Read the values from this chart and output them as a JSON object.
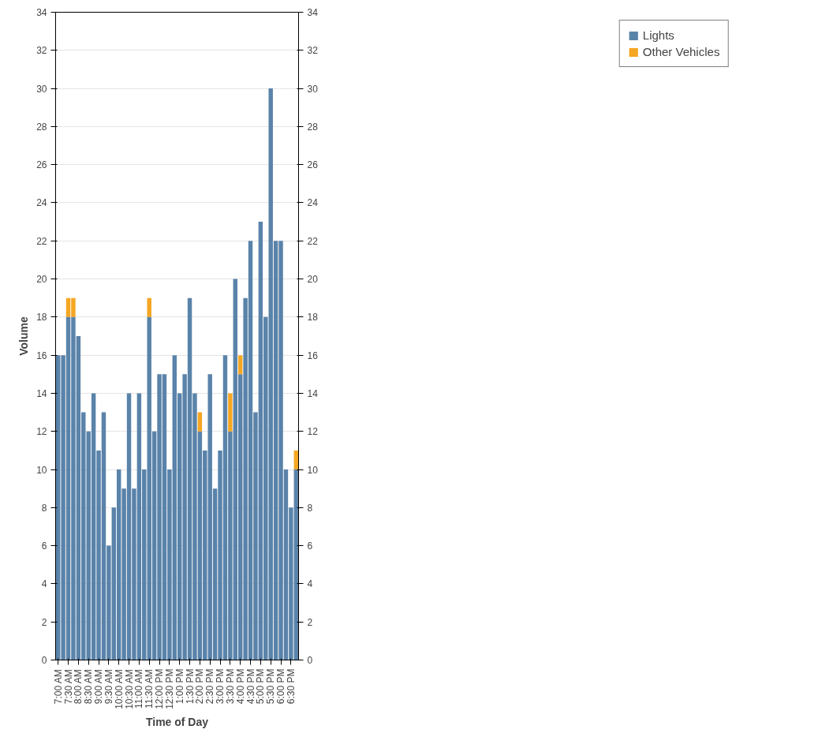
{
  "chart_data": {
    "type": "bar",
    "stacked": true,
    "xlabel": "Time of Day",
    "ylabel": "Volume",
    "categories": [
      "7:00 AM",
      null,
      "7:30 AM",
      null,
      "8:00 AM",
      null,
      "8:30 AM",
      null,
      "9:00 AM",
      null,
      "9:30 AM",
      null,
      "10:00 AM",
      null,
      "10:30 AM",
      null,
      "11:00 AM",
      null,
      "11:30 AM",
      null,
      "12:00 PM",
      null,
      "12:30 PM",
      null,
      "1:00 PM",
      null,
      "1:30 PM",
      null,
      "2:00 PM",
      null,
      "2:30 PM",
      null,
      "3:00 PM",
      null,
      "3:30 PM",
      null,
      "4:00 PM",
      null,
      "4:30 PM",
      null,
      "5:00 PM",
      null,
      "5:30 PM",
      null,
      "6:00 PM",
      null,
      "6:30 PM",
      null
    ],
    "series": [
      {
        "name": "Lights",
        "color": "#5a83aa",
        "values": [
          16,
          16,
          18,
          18,
          17,
          13,
          12,
          14,
          11,
          13,
          6,
          8,
          10,
          9,
          14,
          9,
          14,
          10,
          18,
          12,
          15,
          15,
          10,
          16,
          14,
          15,
          19,
          14,
          12,
          11,
          15,
          9,
          11,
          16,
          12,
          20,
          15,
          19,
          22,
          13,
          23,
          18,
          30,
          22,
          22,
          10,
          8,
          10
        ]
      },
      {
        "name": "Other Vehicles",
        "color": "#f5a623",
        "values": [
          0,
          0,
          1,
          1,
          0,
          0,
          0,
          0,
          0,
          0,
          0,
          0,
          0,
          0,
          0,
          0,
          0,
          0,
          1,
          0,
          0,
          0,
          0,
          0,
          0,
          0,
          0,
          0,
          1,
          0,
          0,
          0,
          0,
          0,
          2,
          0,
          1,
          0,
          0,
          0,
          0,
          0,
          0,
          0,
          0,
          0,
          0,
          1
        ]
      }
    ],
    "ylim": [
      0,
      34
    ],
    "yticks": [
      0,
      2,
      4,
      6,
      8,
      10,
      12,
      14,
      16,
      18,
      20,
      22,
      24,
      26,
      28,
      30,
      32,
      34
    ],
    "y2lim": [
      0,
      34
    ],
    "y2ticks": [
      0,
      2,
      4,
      6,
      8,
      10,
      12,
      14,
      16,
      18,
      20,
      22,
      24,
      26,
      28,
      30,
      32,
      34
    ],
    "grid": "y",
    "legend": "top right"
  }
}
